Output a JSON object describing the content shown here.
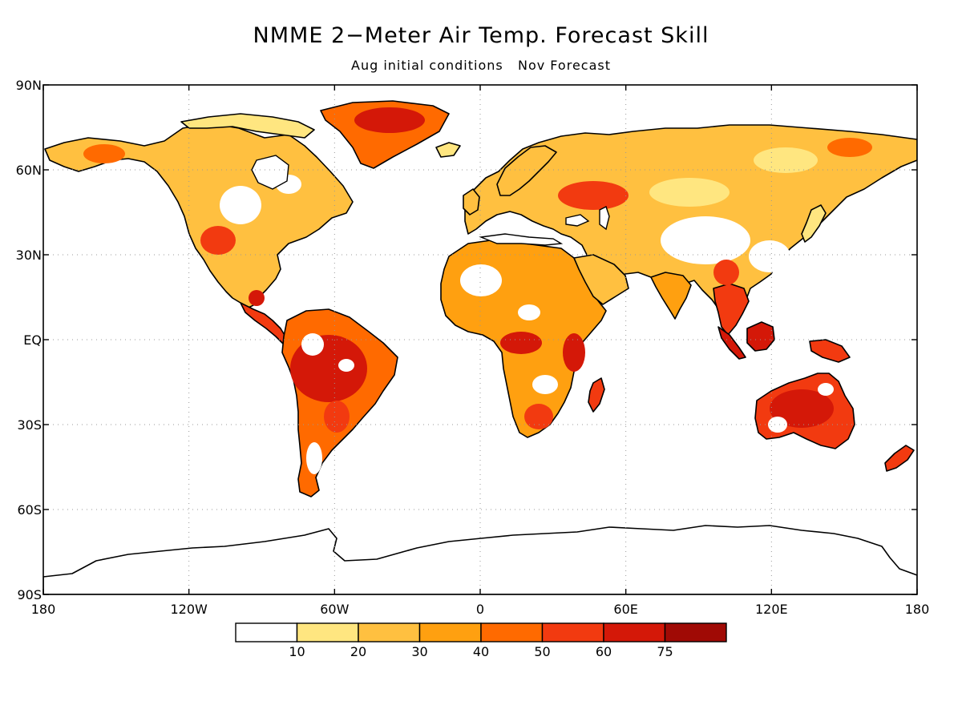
{
  "title": "NMME 2−Meter Air Temp. Forecast Skill",
  "subtitle": "Aug initial conditions   Nov Forecast",
  "map": {
    "projection": "equirectangular",
    "lon_range": [
      -180,
      180
    ],
    "lat_range": [
      -90,
      90
    ],
    "lat_ticks": [
      {
        "value": 90,
        "label": "90N"
      },
      {
        "value": 60,
        "label": "60N"
      },
      {
        "value": 30,
        "label": "30N"
      },
      {
        "value": 0,
        "label": "EQ"
      },
      {
        "value": -30,
        "label": "30S"
      },
      {
        "value": -60,
        "label": "60S"
      },
      {
        "value": -90,
        "label": "90S"
      }
    ],
    "lon_ticks": [
      {
        "value": -180,
        "label": "180"
      },
      {
        "value": -120,
        "label": "120W"
      },
      {
        "value": -60,
        "label": "60W"
      },
      {
        "value": 0,
        "label": "0"
      },
      {
        "value": 60,
        "label": "60E"
      },
      {
        "value": 120,
        "label": "120E"
      },
      {
        "value": 180,
        "label": "180"
      }
    ],
    "grid": "dotted"
  },
  "colorbar": {
    "labels": [
      "10",
      "20",
      "30",
      "40",
      "50",
      "60",
      "75"
    ],
    "colors": [
      "#ffffff",
      "#ffe680",
      "#ffc040",
      "#ffa010",
      "#ff6a00",
      "#f23a10",
      "#d41808",
      "#a00a05"
    ]
  },
  "land_colors": {
    "ocean": "#ffffff",
    "land_low": "#ffffff",
    "skill_10_20": "#ffe680",
    "skill_20_30": "#ffc040",
    "skill_30_40": "#ffa010",
    "skill_40_50": "#ff6a00",
    "skill_50_60": "#f23a10",
    "skill_60_75": "#d41808",
    "skill_75_up": "#a00a05"
  }
}
